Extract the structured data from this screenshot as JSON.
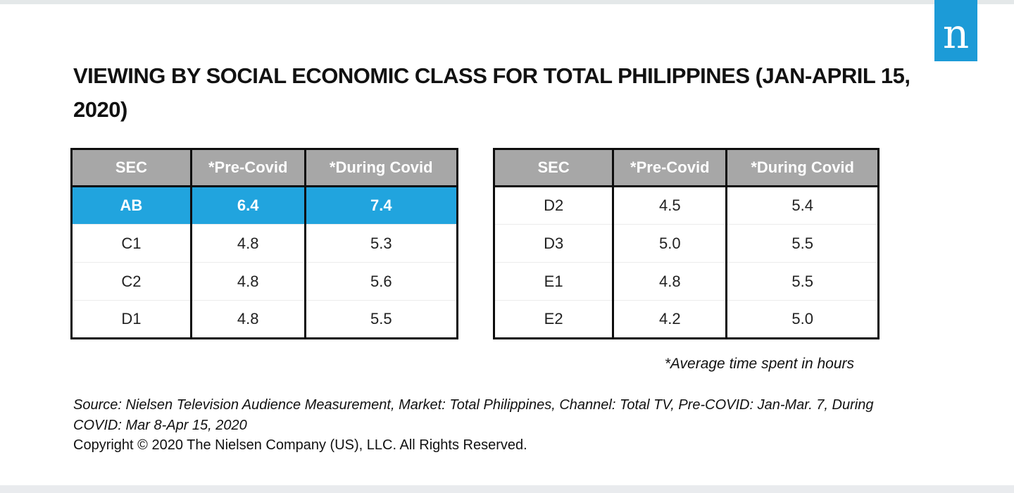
{
  "page": {
    "title": "VIEWING BY SOCIAL ECONOMIC CLASS FOR TOTAL PHILIPPINES (JAN-APRIL 15, 2020)",
    "footnote": "*Average time spent in hours",
    "source": "Source: Nielsen Television Audience Measurement, Market: Total Philippines, Channel: Total TV, Pre-COVID: Jan-Mar. 7, During COVID: Mar 8-Apr 15, 2020",
    "copyright": "Copyright © 2020 The Nielsen Company (US), LLC. All Rights Reserved."
  },
  "logo": {
    "letter": "n"
  },
  "colors": {
    "header_bg": "#A7A7A7",
    "highlight_bg": "#21A4DE",
    "logo_bg": "#1C9BD7",
    "top_strip": "#E4E8E9",
    "bottom_strip": "#E9EBEE",
    "border": "#0D0D0D"
  },
  "tables": [
    {
      "headers": [
        "SEC",
        "*Pre-Covid",
        "*During Covid"
      ],
      "rows": [
        {
          "sec": "AB",
          "pre": "6.4",
          "during": "7.4",
          "highlight": true
        },
        {
          "sec": "C1",
          "pre": "4.8",
          "during": "5.3",
          "highlight": false
        },
        {
          "sec": "C2",
          "pre": "4.8",
          "during": "5.6",
          "highlight": false
        },
        {
          "sec": "D1",
          "pre": "4.8",
          "during": "5.5",
          "highlight": false
        }
      ]
    },
    {
      "headers": [
        "SEC",
        "*Pre-Covid",
        "*During Covid"
      ],
      "rows": [
        {
          "sec": "D2",
          "pre": "4.5",
          "during": "5.4",
          "highlight": false
        },
        {
          "sec": "D3",
          "pre": "5.0",
          "during": "5.5",
          "highlight": false
        },
        {
          "sec": "E1",
          "pre": "4.8",
          "during": "5.5",
          "highlight": false
        },
        {
          "sec": "E2",
          "pre": "4.2",
          "during": "5.0",
          "highlight": false
        }
      ]
    }
  ],
  "chart_data": [
    {
      "type": "table",
      "title": "Viewing by social economic class for Total Philippines (Jan-April 15, 2020) — left table",
      "columns": [
        "SEC",
        "*Pre-Covid",
        "*During Covid"
      ],
      "rows": [
        [
          "AB",
          6.4,
          7.4
        ],
        [
          "C1",
          4.8,
          5.3
        ],
        [
          "C2",
          4.8,
          5.6
        ],
        [
          "D1",
          4.8,
          5.5
        ]
      ],
      "units": "average time spent in hours",
      "highlighted_row": "AB"
    },
    {
      "type": "table",
      "title": "Viewing by social economic class for Total Philippines (Jan-April 15, 2020) — right table",
      "columns": [
        "SEC",
        "*Pre-Covid",
        "*During Covid"
      ],
      "rows": [
        [
          "D2",
          4.5,
          5.4
        ],
        [
          "D3",
          5.0,
          5.5
        ],
        [
          "E1",
          4.8,
          5.5
        ],
        [
          "E2",
          4.2,
          5.0
        ]
      ],
      "units": "average time spent in hours",
      "highlighted_row": null
    }
  ]
}
